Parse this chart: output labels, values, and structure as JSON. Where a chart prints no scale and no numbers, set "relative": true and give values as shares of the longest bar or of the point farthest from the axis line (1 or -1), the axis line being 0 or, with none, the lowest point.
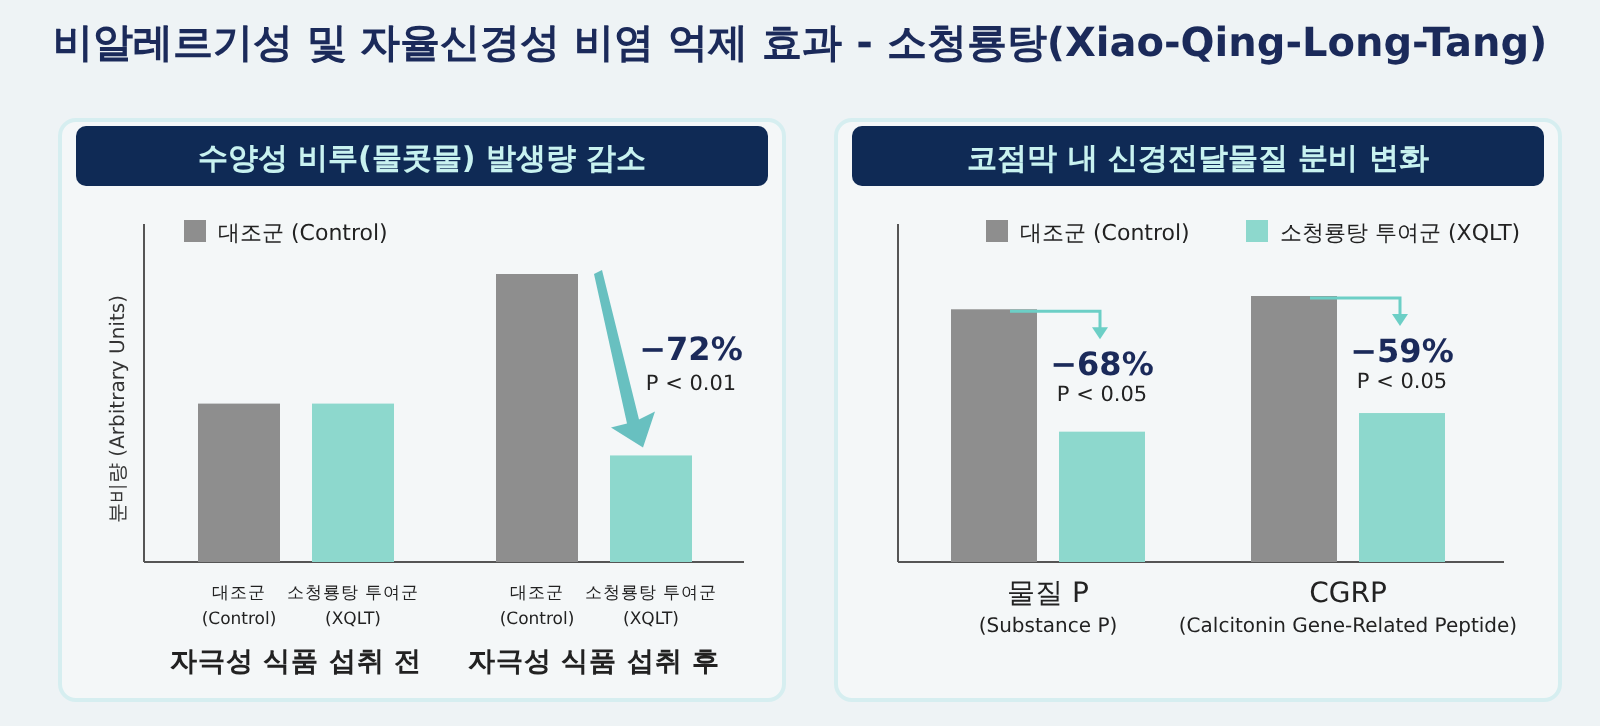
{
  "chart_data": [
    {
      "type": "bar",
      "title": "비알레르기성 및 자율신경성 비염 억제 효과 - 소청룡탕(Xiao-Qing-Long-Tang)",
      "subtitle": "수양성 비루(물콧물) 발생량 감소",
      "ylabel": "분비량 (Arbitrary Units)",
      "relative": true,
      "legend": "top left",
      "categories": [
        "대조군 (Control)",
        "소청룡탕 투여군 (XQLT)",
        "대조군 (Control)",
        "소청룡탕 투여군 (XQLT)"
      ],
      "series": [
        {
          "name": "대조군 (Control)",
          "color": "#8e8e8e",
          "colors": [
            "#8e8e8e",
            "#8dd8cd",
            "#8e8e8e",
            "#8dd8cd"
          ],
          "values": [
            0.55,
            0.55,
            1,
            0.37
          ]
        }
      ],
      "annotations": [
        "자극성 식품 섭취 전",
        "자극성 식품 섭취 후",
        "−72%",
        "P < 0.01"
      ]
    },
    {
      "type": "bar",
      "subtitle": "코점막 내 신경전달물질 분비 변화",
      "relative": true,
      "legend": "top",
      "categories": [
        "물질 P (Substance P)",
        "CGRP (Calcitonin Gene-Related Peptide)"
      ],
      "series": [
        {
          "name": "대조군 (Control)",
          "color": "#8e8e8e",
          "values": [
            0.95,
            1
          ]
        },
        {
          "name": "소청룡탕 투여군 (XQLT)",
          "color": "#8dd8cd",
          "values": [
            0.49,
            0.56
          ]
        }
      ],
      "annotations": [
        "−68%",
        "P < 0.05",
        "−59%",
        "P < 0.05"
      ]
    }
  ]
}
